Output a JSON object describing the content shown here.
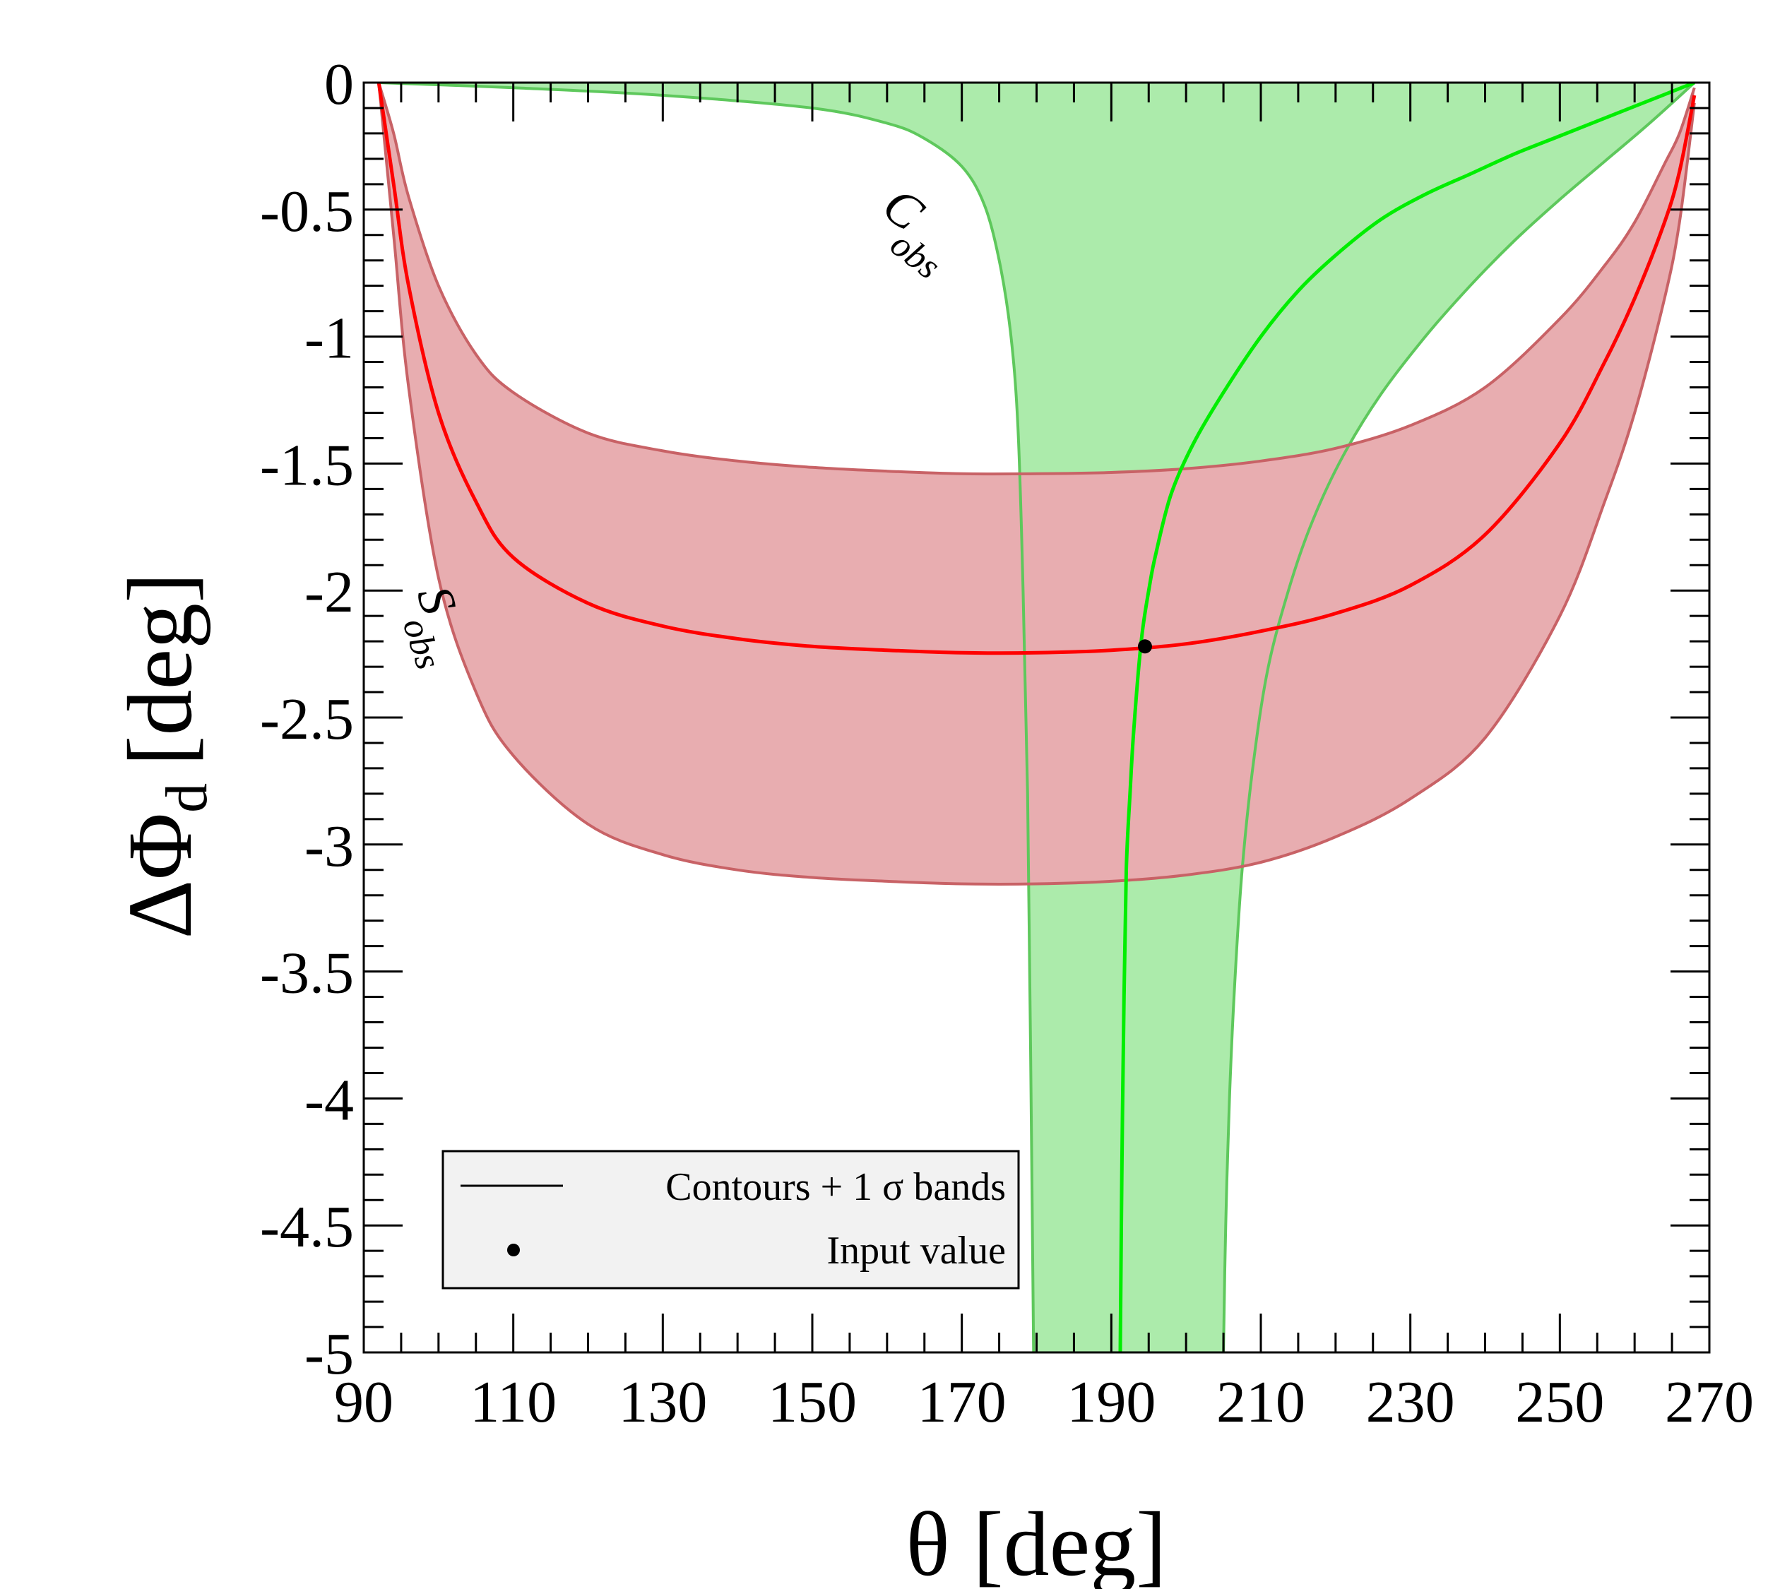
{
  "chart_data": {
    "type": "line",
    "xlabel": "θ [deg]",
    "ylabel_main": "ΔΦ",
    "ylabel_sub": "d",
    "ylabel_unit": "[deg]",
    "xlim": [
      90,
      270
    ],
    "ylim": [
      -5,
      0
    ],
    "xticks": [
      90,
      110,
      130,
      150,
      170,
      190,
      210,
      230,
      250,
      270
    ],
    "yticks": [
      0,
      -0.5,
      -1,
      -1.5,
      -2,
      -2.5,
      -3,
      -3.5,
      -4,
      -4.5,
      -5
    ],
    "ytick_labels": [
      "0",
      "-0.5",
      "-1",
      "-1.5",
      "-2",
      "-2.5",
      "-3",
      "-3.5",
      "-4",
      "-4.5",
      "-5"
    ],
    "colors": {
      "s_band_fill": "#e8adb0",
      "s_band_edge": "#c86266",
      "s_central": "#ff0000",
      "c_band_fill": "#acebab",
      "c_band_edge": "#5ec85c",
      "c_central": "#00ee00"
    },
    "series": [
      {
        "name": "S_obs central",
        "x": [
          92,
          94,
          96,
          100,
          105,
          110,
          120,
          130,
          140,
          150,
          160,
          170,
          180,
          190,
          200,
          210,
          220,
          230,
          240,
          250,
          256,
          260,
          264,
          266,
          268
        ],
        "y": [
          0,
          -0.4,
          -0.8,
          -1.3,
          -1.65,
          -1.87,
          -2.05,
          -2.14,
          -2.19,
          -2.22,
          -2.235,
          -2.245,
          -2.245,
          -2.235,
          -2.21,
          -2.16,
          -2.09,
          -1.98,
          -1.78,
          -1.42,
          -1.1,
          -0.85,
          -0.55,
          -0.35,
          -0.05
        ]
      },
      {
        "name": "S_obs band upper",
        "x": [
          92,
          94,
          96,
          100,
          105,
          110,
          120,
          130,
          140,
          150,
          160,
          170,
          180,
          190,
          200,
          210,
          220,
          230,
          240,
          250,
          256,
          260,
          264,
          266,
          268
        ],
        "y": [
          0,
          -0.2,
          -0.45,
          -0.8,
          -1.07,
          -1.22,
          -1.38,
          -1.45,
          -1.49,
          -1.515,
          -1.53,
          -1.54,
          -1.54,
          -1.535,
          -1.52,
          -1.49,
          -1.44,
          -1.35,
          -1.2,
          -0.93,
          -0.72,
          -0.55,
          -0.32,
          -0.2,
          -0.02
        ]
      },
      {
        "name": "S_obs band lower",
        "x": [
          92,
          94,
          96,
          100,
          105,
          110,
          120,
          130,
          140,
          150,
          160,
          170,
          180,
          190,
          200,
          210,
          220,
          230,
          240,
          250,
          256,
          260,
          264,
          266,
          268
        ],
        "y": [
          0,
          -0.6,
          -1.2,
          -1.95,
          -2.4,
          -2.65,
          -2.92,
          -3.04,
          -3.1,
          -3.13,
          -3.145,
          -3.155,
          -3.155,
          -3.145,
          -3.12,
          -3.07,
          -2.97,
          -2.82,
          -2.58,
          -2.1,
          -1.65,
          -1.3,
          -0.85,
          -0.55,
          -0.08
        ]
      },
      {
        "name": "C_obs central",
        "x": [
          268,
          262,
          256,
          250,
          244,
          238,
          232,
          226,
          220,
          215,
          210,
          205,
          201,
          198,
          196,
          195,
          194,
          193,
          192.5,
          192,
          191.7,
          191.4,
          191.2
        ],
        "y": [
          0,
          -0.07,
          -0.14,
          -0.21,
          -0.28,
          -0.36,
          -0.44,
          -0.54,
          -0.68,
          -0.82,
          -1.0,
          -1.22,
          -1.42,
          -1.62,
          -1.85,
          -2.0,
          -2.2,
          -2.55,
          -2.8,
          -3.1,
          -3.6,
          -4.3,
          -5.0
        ]
      },
      {
        "name": "C_obs band upper-left edge",
        "x": [
          92,
          110,
          130,
          150,
          160,
          165,
          170,
          173,
          175,
          176.5,
          177.5,
          178.2,
          178.8,
          179.2,
          179.6
        ],
        "y": [
          0,
          -0.02,
          -0.05,
          -0.1,
          -0.16,
          -0.22,
          -0.33,
          -0.48,
          -0.7,
          -0.98,
          -1.35,
          -2.0,
          -2.8,
          -3.8,
          -5.0
        ]
      },
      {
        "name": "C_obs band right edge",
        "x": [
          268,
          262,
          256,
          250,
          244,
          238,
          232,
          226,
          221,
          217,
          214,
          211,
          209,
          207.5,
          206.5,
          205.8,
          205.3,
          205.0
        ],
        "y": [
          0,
          -0.16,
          -0.31,
          -0.46,
          -0.62,
          -0.8,
          -1.0,
          -1.23,
          -1.47,
          -1.72,
          -1.97,
          -2.3,
          -2.68,
          -3.1,
          -3.55,
          -4.0,
          -4.5,
          -5.0
        ]
      }
    ],
    "points": [
      {
        "name": "Input value",
        "x": 194.5,
        "y": -2.22
      }
    ],
    "annotations": {
      "c_label": "C",
      "c_sub": "obs",
      "s_label": "S",
      "s_sub": "obs"
    },
    "legend": {
      "position": "bottom-left",
      "entries": [
        {
          "label": "Contours + 1 σ bands",
          "marker": "line"
        },
        {
          "label": "Input value",
          "marker": "dot"
        }
      ]
    }
  }
}
